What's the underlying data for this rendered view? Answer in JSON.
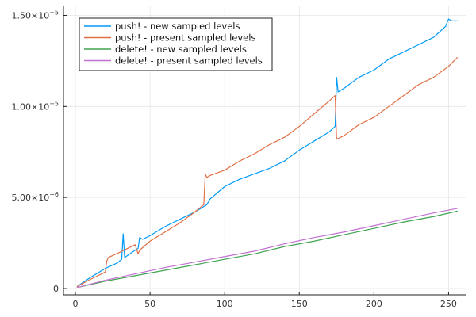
{
  "chart_data": {
    "type": "line",
    "title": "",
    "xlabel": "",
    "ylabel": "",
    "xlim": [
      -8,
      262
    ],
    "ylim": [
      -3.5e-07,
      1.55e-05
    ],
    "grid": true,
    "legend_position": "top-left",
    "x_ticks": [
      {
        "value": 0,
        "label": "0"
      },
      {
        "value": 50,
        "label": "50"
      },
      {
        "value": 100,
        "label": "100"
      },
      {
        "value": 150,
        "label": "150"
      },
      {
        "value": 200,
        "label": "200"
      },
      {
        "value": 250,
        "label": "250"
      }
    ],
    "y_ticks": [
      {
        "value": 0,
        "label": "0",
        "exp": ""
      },
      {
        "value": 5e-06,
        "label": "5.00×10",
        "exp": "−6"
      },
      {
        "value": 1e-05,
        "label": "1.00×10",
        "exp": "−5"
      },
      {
        "value": 1.5e-05,
        "label": "1.50×10",
        "exp": "−5"
      }
    ],
    "series": [
      {
        "name": "push! - new sampled levels",
        "color": "#009af9",
        "x": [
          1,
          10,
          20,
          28,
          31,
          32,
          33,
          40,
          42,
          43,
          45,
          50,
          60,
          70,
          80,
          86,
          88,
          90,
          100,
          110,
          120,
          130,
          140,
          150,
          160,
          170,
          174,
          175,
          176,
          180,
          190,
          200,
          210,
          220,
          230,
          240,
          248,
          250,
          252,
          256
        ],
        "y": [
          1e-07,
          6e-07,
          1.1e-06,
          1.4e-06,
          1.6e-06,
          3e-06,
          1.7e-06,
          2.1e-06,
          2.2e-06,
          2.8e-06,
          2.7e-06,
          2.9e-06,
          3.4e-06,
          3.8e-06,
          4.2e-06,
          4.5e-06,
          4.6e-06,
          4.9e-06,
          5.6e-06,
          6e-06,
          6.3e-06,
          6.6e-06,
          7e-06,
          7.6e-06,
          8.1e-06,
          8.6e-06,
          8.9e-06,
          1.16e-05,
          1.08e-05,
          1.1e-05,
          1.16e-05,
          1.2e-05,
          1.26e-05,
          1.3e-05,
          1.34e-05,
          1.38e-05,
          1.44e-05,
          1.48e-05,
          1.47e-05,
          1.47e-05
        ]
      },
      {
        "name": "push! - present sampled levels",
        "color": "#e26f46",
        "x": [
          1,
          10,
          20,
          21,
          22,
          30,
          40,
          42,
          43,
          50,
          60,
          70,
          80,
          86,
          87,
          88,
          90,
          100,
          110,
          120,
          130,
          140,
          150,
          160,
          170,
          174,
          175,
          180,
          190,
          200,
          210,
          220,
          230,
          240,
          250,
          256
        ],
        "y": [
          1e-07,
          5e-07,
          9e-07,
          1.5e-06,
          1.7e-06,
          2e-06,
          2.4e-06,
          1.9e-06,
          2.1e-06,
          2.6e-06,
          3.1e-06,
          3.6e-06,
          4.2e-06,
          4.6e-06,
          6.3e-06,
          6.1e-06,
          6.2e-06,
          6.5e-06,
          7e-06,
          7.4e-06,
          7.9e-06,
          8.3e-06,
          8.9e-06,
          9.6e-06,
          1.03e-05,
          1.06e-05,
          8.2e-06,
          8.4e-06,
          9e-06,
          9.4e-06,
          1e-05,
          1.06e-05,
          1.12e-05,
          1.16e-05,
          1.22e-05,
          1.27e-05
        ]
      },
      {
        "name": "delete! - new sampled levels",
        "color": "#3ea44e",
        "x": [
          1,
          20,
          40,
          60,
          80,
          100,
          120,
          140,
          160,
          180,
          200,
          220,
          240,
          256
        ],
        "y": [
          5e-08,
          4e-07,
          7e-07,
          1e-06,
          1.3e-06,
          1.6e-06,
          1.9e-06,
          2.3e-06,
          2.6e-06,
          2.95e-06,
          3.3e-06,
          3.65e-06,
          3.95e-06,
          4.25e-06
        ]
      },
      {
        "name": "delete! - present sampled levels",
        "color": "#c271d2",
        "x": [
          1,
          20,
          40,
          60,
          80,
          100,
          120,
          140,
          160,
          180,
          200,
          220,
          240,
          256
        ],
        "y": [
          5e-08,
          4.5e-07,
          8e-07,
          1.15e-06,
          1.45e-06,
          1.75e-06,
          2.05e-06,
          2.45e-06,
          2.8e-06,
          3.1e-06,
          3.45e-06,
          3.8e-06,
          4.15e-06,
          4.4e-06
        ]
      }
    ]
  }
}
